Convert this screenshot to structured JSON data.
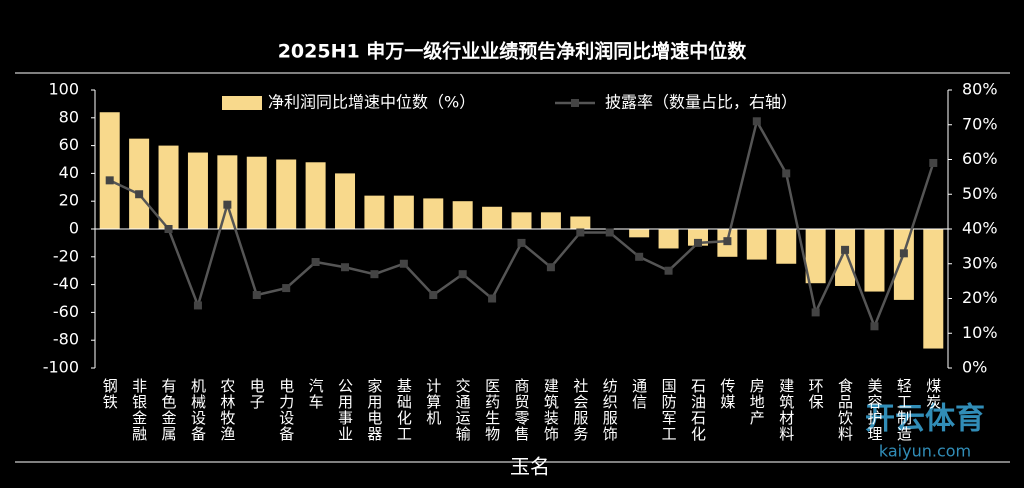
{
  "chart_data": {
    "type": "bar-line",
    "title": "2025H1 申万一级行业业绩预告净利润同比增速中位数",
    "categories": [
      "钢铁",
      "非银金融",
      "有色金属",
      "机械设备",
      "农林牧渔",
      "电子",
      "电力设备",
      "汽车",
      "公用事业",
      "家用电器",
      "基础化工",
      "计算机",
      "交通运输",
      "医药生物",
      "商贸零售",
      "建筑装饰",
      "社会服务",
      "纺织服饰",
      "通信",
      "国防军工",
      "石油石化",
      "传媒",
      "房地产",
      "建筑材料",
      "环保",
      "食品饮料",
      "美容护理",
      "轻工制造",
      "煤炭"
    ],
    "series": [
      {
        "name": "净利润同比增速中位数（%）",
        "type": "bar",
        "color": "#f8d98c",
        "values": [
          84,
          65,
          60,
          55,
          53,
          52,
          50,
          48,
          40,
          24,
          24,
          22,
          20,
          16,
          12,
          12,
          9,
          0,
          -6,
          -14,
          -12,
          -20,
          -22,
          -25,
          -39,
          -41,
          -45,
          -51,
          -86
        ]
      },
      {
        "name": "披露率（数量占比，右轴）",
        "type": "line",
        "axis": "y2",
        "color": "#555555",
        "values": [
          54,
          50,
          40,
          18,
          47,
          21,
          23,
          30.5,
          29,
          27,
          30,
          21,
          27,
          20,
          36,
          29,
          39,
          39,
          32,
          28,
          36,
          36.5,
          71,
          56,
          16,
          34,
          12,
          33,
          59
        ]
      }
    ],
    "ylim": [
      -100,
      100
    ],
    "yticks": [
      -100,
      -80,
      -60,
      -40,
      -20,
      0,
      20,
      40,
      60,
      80,
      100
    ],
    "y2lim": [
      0,
      80
    ],
    "y2ticks": [
      {
        "value": 0,
        "label": "0%"
      },
      {
        "value": 10,
        "label": "10%"
      },
      {
        "value": 20,
        "label": "20%"
      },
      {
        "value": 30,
        "label": "30%"
      },
      {
        "value": 40,
        "label": "40%"
      },
      {
        "value": 50,
        "label": "50%"
      },
      {
        "value": 60,
        "label": "60%"
      },
      {
        "value": 70,
        "label": "70%"
      },
      {
        "value": 80,
        "label": "80%"
      }
    ],
    "watermarks": [
      "玉名",
      "开云体育",
      "kaiyun.com"
    ]
  }
}
